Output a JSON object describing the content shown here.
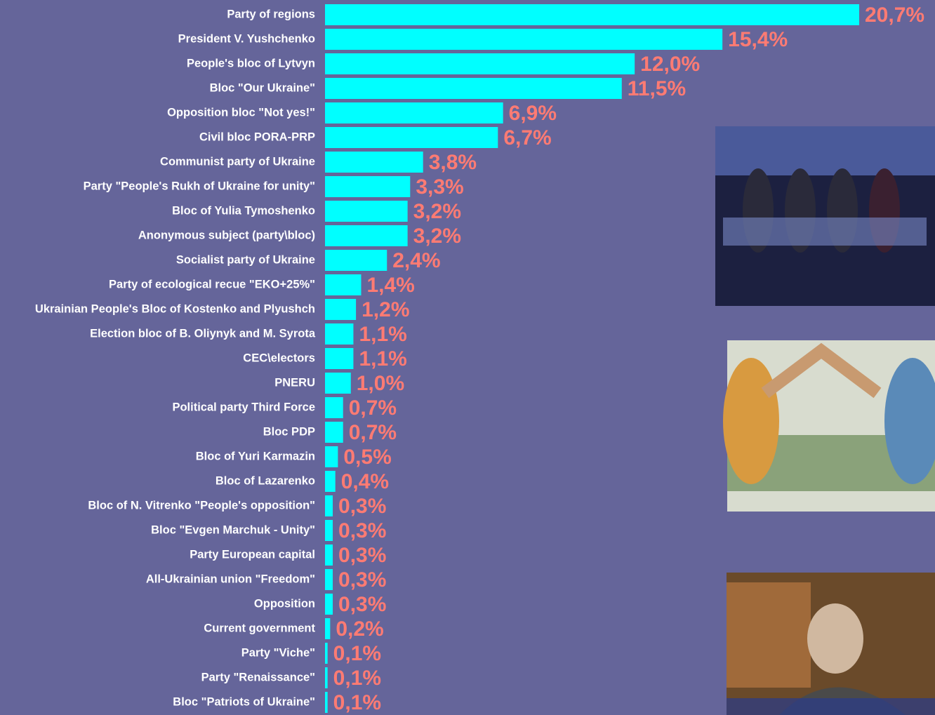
{
  "chart_data": {
    "type": "bar",
    "orientation": "horizontal",
    "color": "#00ffff",
    "label_color": "#ff7b73",
    "categories": [
      "Party of regions",
      "President V. Yushchenko",
      "People's bloc of Lytvyn",
      "Bloc \"Our Ukraine\"",
      "Opposition bloc \"Not yes!\"",
      "Civil bloc PORA-PRP",
      "Communist party of Ukraine",
      "Party \"People's Rukh of Ukraine for unity\"",
      "Bloc of Yulia Tymoshenko",
      "Anonymous subject (party\\bloc)",
      "Socialist party of Ukraine",
      "Party of ecological recue \"EKO+25%\"",
      "Ukrainian People's Bloc of Kostenko and Plyushch",
      "Election bloc of B. Oliynyk and M. Syrota",
      "CEC\\electors",
      "PNERU",
      "Political party Third Force",
      "Bloc PDP",
      "Bloc of Yuri Karmazin",
      "Bloc of Lazarenko",
      "Bloc of N. Vitrenko \"People's opposition\"",
      "Bloc \"Evgen Marchuk - Unity\"",
      "Party European capital",
      "All-Ukrainian union \"Freedom\"",
      "Opposition",
      "Current government",
      "Party \"Viche\"",
      "Party \"Renaissance\"",
      "Bloc \"Patriots of Ukraine\""
    ],
    "values": [
      20.7,
      15.4,
      12.0,
      11.5,
      6.9,
      6.7,
      3.8,
      3.3,
      3.2,
      3.2,
      2.4,
      1.4,
      1.2,
      1.1,
      1.1,
      1.0,
      0.7,
      0.7,
      0.5,
      0.4,
      0.3,
      0.3,
      0.3,
      0.3,
      0.3,
      0.2,
      0.1,
      0.1,
      0.1
    ],
    "value_labels": [
      "20,7%",
      "15,4%",
      "12,0%",
      "11,5%",
      "6,9%",
      "6,7%",
      "3,8%",
      "3,3%",
      "3,2%",
      "3,2%",
      "2,4%",
      "1,4%",
      "1,2%",
      "1,1%",
      "1,1%",
      "1,0%",
      "0,7%",
      "0,7%",
      "0,5%",
      "0,4%",
      "0,3%",
      "0,3%",
      "0,3%",
      "0,3%",
      "0,3%",
      "0,2%",
      "0,1%",
      "0,1%",
      "0,1%"
    ]
  }
}
